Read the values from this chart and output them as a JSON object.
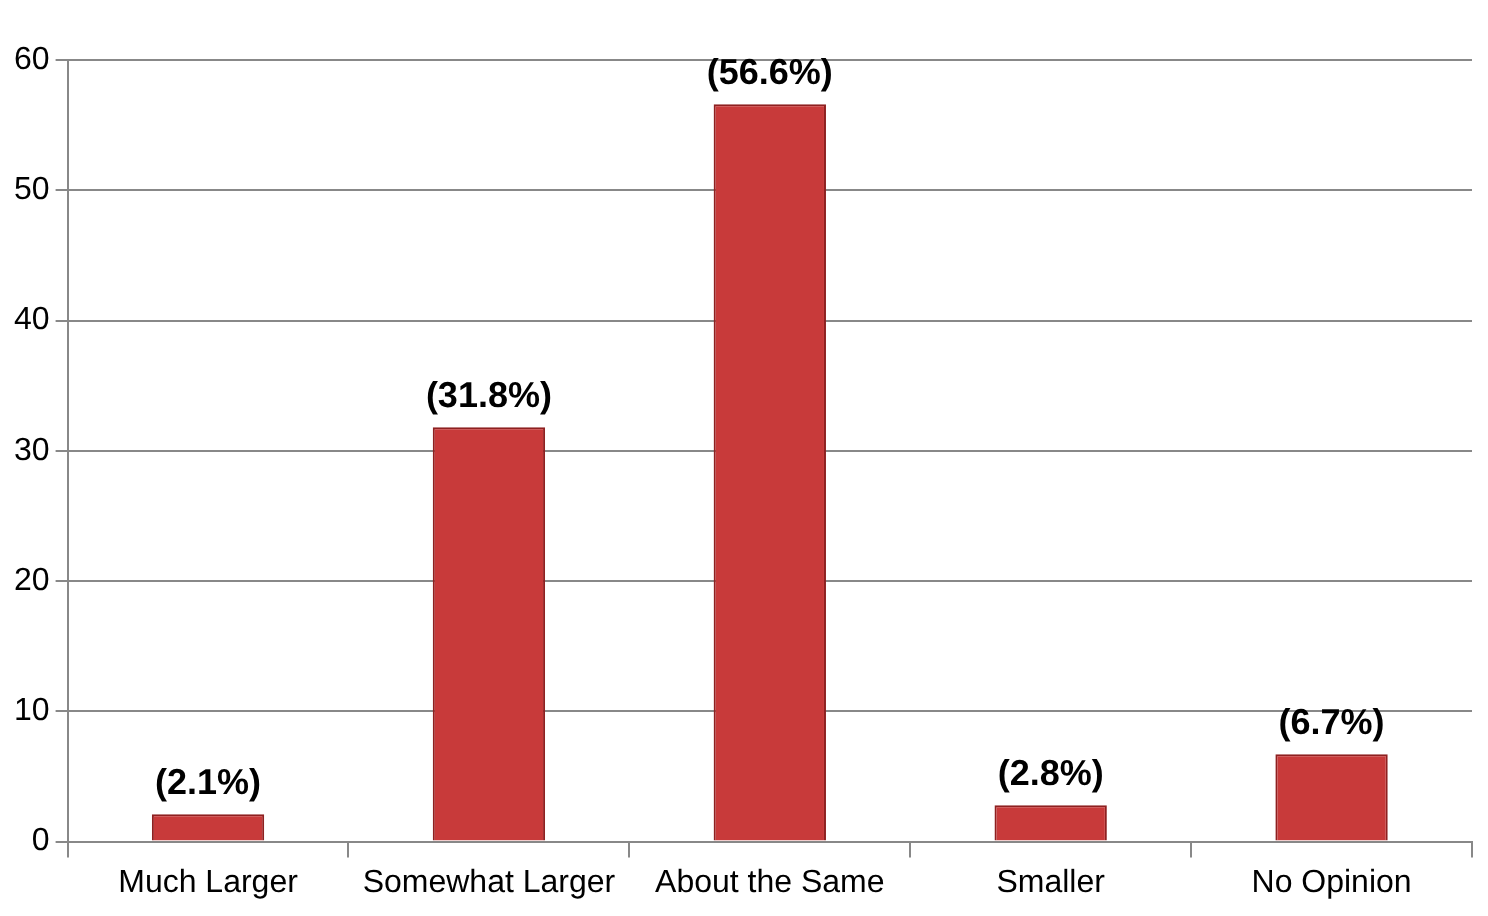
{
  "chart_data": {
    "type": "bar",
    "categories": [
      "Much Larger",
      "Somewhat Larger",
      "About the Same",
      "Smaller",
      "No Opinion"
    ],
    "values": [
      2.1,
      31.8,
      56.6,
      2.8,
      6.7
    ],
    "value_labels": [
      "(2.1%)",
      "(31.8%)",
      "(56.6%)",
      "(2.8%)",
      "(6.7%)"
    ],
    "color": "#c83a3a",
    "ylim": [
      0,
      60
    ],
    "yticks": [
      0,
      10,
      20,
      30,
      40,
      50,
      60
    ],
    "grid": "y",
    "legend": false
  }
}
